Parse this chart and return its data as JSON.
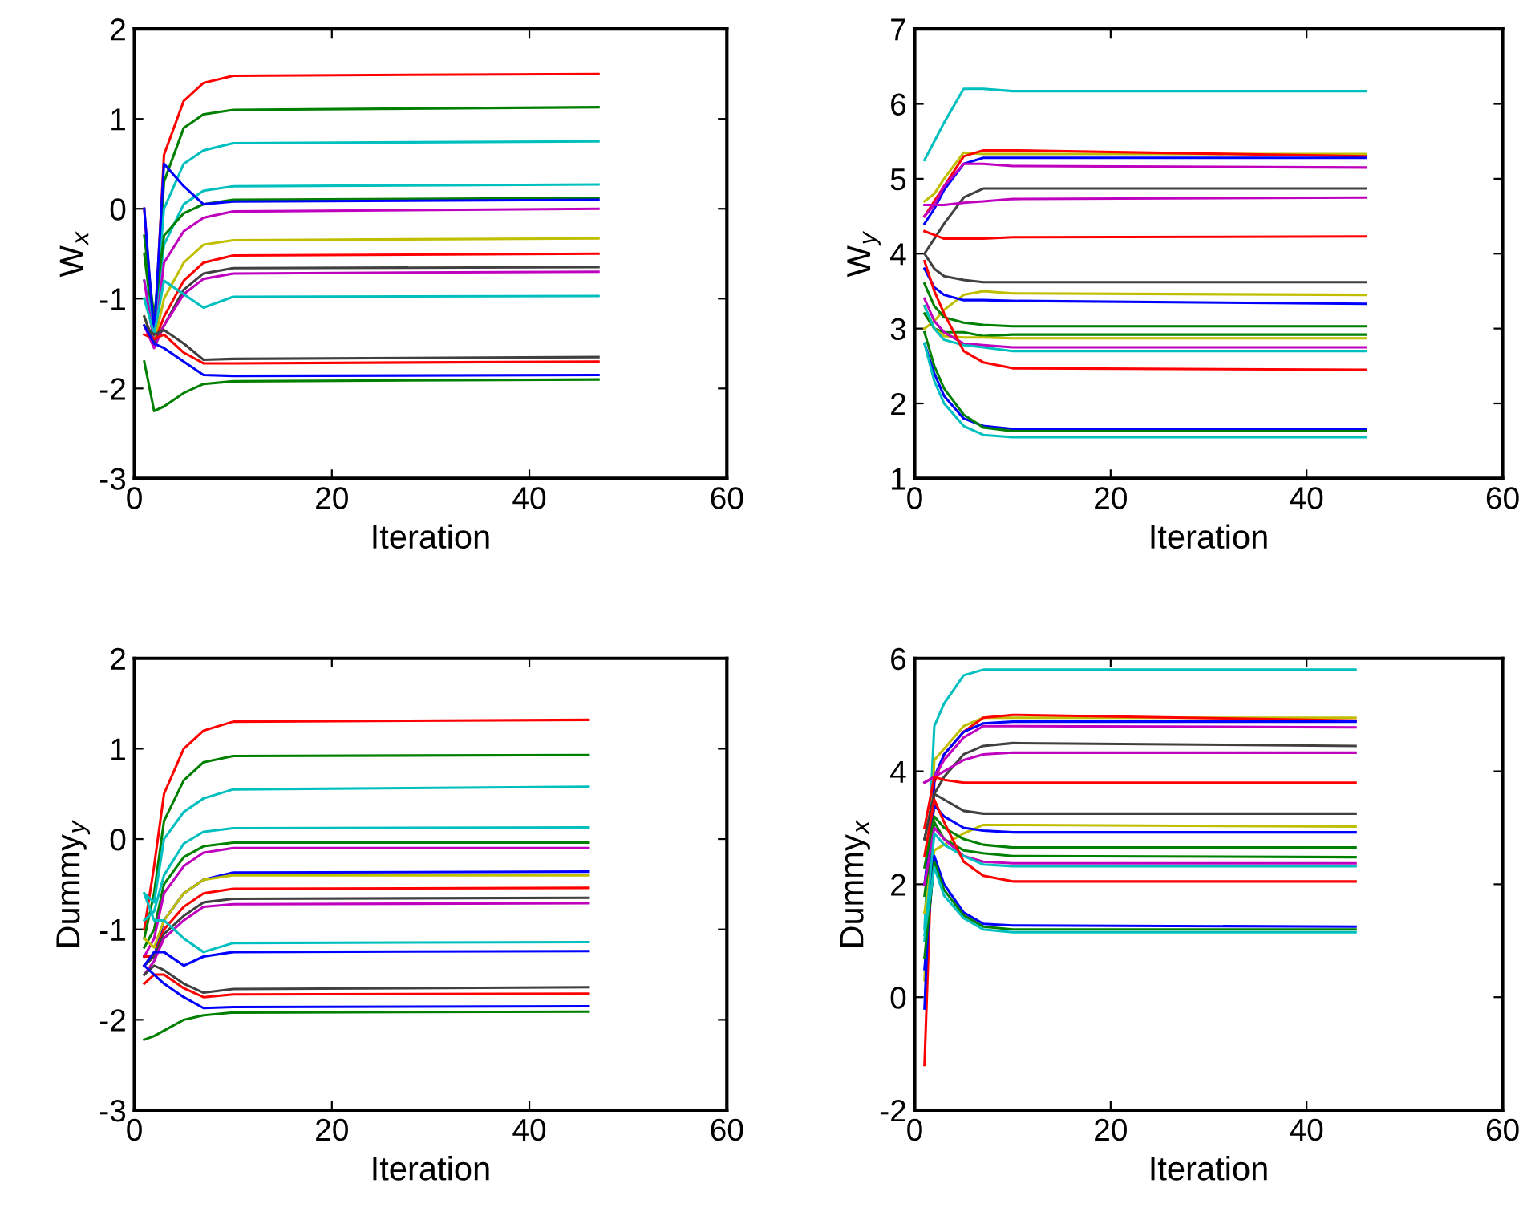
{
  "chart_data": [
    {
      "type": "line",
      "xlabel": "Iteration",
      "ylabel": "W$_{x}$",
      "x": [
        1,
        2,
        3,
        5,
        7,
        10,
        47
      ],
      "xlim": [
        0,
        60
      ],
      "xticks": [
        0,
        20,
        40,
        60
      ],
      "ylim": [
        -3,
        2
      ],
      "yticks": [
        -3,
        -2,
        -1,
        0,
        1,
        2
      ],
      "series": [
        {
          "color": "#ff0000",
          "values": [
            0.0,
            -1.5,
            0.6,
            1.2,
            1.4,
            1.48,
            1.5
          ]
        },
        {
          "color": "#008000",
          "values": [
            -0.5,
            -1.4,
            0.3,
            0.9,
            1.05,
            1.1,
            1.13
          ]
        },
        {
          "color": "#00bfbf",
          "values": [
            -0.8,
            -1.3,
            0.0,
            0.5,
            0.65,
            0.73,
            0.75
          ]
        },
        {
          "color": "#00bfbf",
          "values": [
            -1.0,
            -1.3,
            -0.4,
            0.05,
            0.2,
            0.25,
            0.27
          ]
        },
        {
          "color": "#008000",
          "values": [
            -0.3,
            -1.2,
            -0.3,
            -0.05,
            0.05,
            0.1,
            0.12
          ]
        },
        {
          "color": "#0000ff",
          "values": [
            0.0,
            -1.4,
            0.5,
            0.25,
            0.05,
            0.08,
            0.1
          ]
        },
        {
          "color": "#bf00bf",
          "values": [
            -0.8,
            -1.5,
            -0.6,
            -0.25,
            -0.1,
            -0.03,
            0.0
          ]
        },
        {
          "color": "#bfbf00",
          "values": [
            -1.2,
            -1.5,
            -1.0,
            -0.6,
            -0.4,
            -0.35,
            -0.33
          ]
        },
        {
          "color": "#ff0000",
          "values": [
            -1.3,
            -1.5,
            -1.2,
            -0.8,
            -0.6,
            -0.52,
            -0.5
          ]
        },
        {
          "color": "#404040",
          "values": [
            -1.2,
            -1.5,
            -1.3,
            -0.9,
            -0.72,
            -0.66,
            -0.65
          ]
        },
        {
          "color": "#bf00bf",
          "values": [
            -1.3,
            -1.55,
            -1.3,
            -0.95,
            -0.78,
            -0.72,
            -0.7
          ]
        },
        {
          "color": "#00bfbf",
          "values": [
            -1.0,
            -1.4,
            -0.8,
            -0.95,
            -1.1,
            -0.98,
            -0.97
          ]
        },
        {
          "color": "#404040",
          "values": [
            -1.3,
            -1.4,
            -1.35,
            -1.5,
            -1.68,
            -1.67,
            -1.65
          ]
        },
        {
          "color": "#ff0000",
          "values": [
            -1.4,
            -1.45,
            -1.4,
            -1.6,
            -1.72,
            -1.72,
            -1.7
          ]
        },
        {
          "color": "#0000ff",
          "values": [
            -1.3,
            -1.5,
            -1.55,
            -1.7,
            -1.85,
            -1.86,
            -1.85
          ]
        },
        {
          "color": "#008000",
          "values": [
            -1.7,
            -2.25,
            -2.2,
            -2.05,
            -1.95,
            -1.92,
            -1.9
          ]
        }
      ]
    },
    {
      "type": "line",
      "xlabel": "Iteration",
      "ylabel": "W$_{y}$",
      "x": [
        1,
        2,
        3,
        5,
        7,
        10,
        46
      ],
      "xlim": [
        0,
        60
      ],
      "xticks": [
        0,
        20,
        40,
        60
      ],
      "ylim": [
        1,
        7
      ],
      "yticks": [
        1,
        2,
        3,
        4,
        5,
        6,
        7
      ],
      "series": [
        {
          "color": "#00bfbf",
          "values": [
            5.25,
            5.5,
            5.75,
            6.2,
            6.2,
            6.17,
            6.17
          ]
        },
        {
          "color": "#bfbf00",
          "values": [
            4.7,
            4.8,
            5.0,
            5.35,
            5.33,
            5.33,
            5.33
          ]
        },
        {
          "color": "#ff0000",
          "values": [
            4.5,
            4.7,
            4.9,
            5.3,
            5.38,
            5.38,
            5.3
          ]
        },
        {
          "color": "#0000ff",
          "values": [
            4.4,
            4.6,
            4.85,
            5.2,
            5.28,
            5.28,
            5.28
          ]
        },
        {
          "color": "#bf00bf",
          "values": [
            4.5,
            4.65,
            4.9,
            5.2,
            5.2,
            5.17,
            5.15
          ]
        },
        {
          "color": "#404040",
          "values": [
            4.0,
            4.2,
            4.4,
            4.75,
            4.87,
            4.87,
            4.87
          ]
        },
        {
          "color": "#bf00bf",
          "values": [
            4.65,
            4.65,
            4.65,
            4.68,
            4.7,
            4.73,
            4.75
          ]
        },
        {
          "color": "#ff0000",
          "values": [
            4.3,
            4.25,
            4.2,
            4.2,
            4.2,
            4.22,
            4.23
          ]
        },
        {
          "color": "#404040",
          "values": [
            4.0,
            3.8,
            3.7,
            3.65,
            3.62,
            3.62,
            3.62
          ]
        },
        {
          "color": "#bfbf00",
          "values": [
            3.0,
            3.1,
            3.25,
            3.45,
            3.5,
            3.47,
            3.45
          ]
        },
        {
          "color": "#0000ff",
          "values": [
            3.8,
            3.55,
            3.45,
            3.38,
            3.38,
            3.37,
            3.33
          ]
        },
        {
          "color": "#008000",
          "values": [
            3.6,
            3.3,
            3.15,
            3.08,
            3.05,
            3.03,
            3.03
          ]
        },
        {
          "color": "#008000",
          "values": [
            3.2,
            3.0,
            2.95,
            2.95,
            2.9,
            2.92,
            2.92
          ]
        },
        {
          "color": "#bfbf00",
          "values": [
            3.3,
            3.0,
            2.9,
            2.88,
            2.88,
            2.87,
            2.87
          ]
        },
        {
          "color": "#bf00bf",
          "values": [
            3.4,
            3.1,
            2.95,
            2.8,
            2.78,
            2.75,
            2.75
          ]
        },
        {
          "color": "#00bfbf",
          "values": [
            3.3,
            3.0,
            2.85,
            2.78,
            2.75,
            2.7,
            2.7
          ]
        },
        {
          "color": "#ff0000",
          "values": [
            3.9,
            3.5,
            3.2,
            2.7,
            2.55,
            2.47,
            2.45
          ]
        },
        {
          "color": "#0000ff",
          "values": [
            2.8,
            2.4,
            2.1,
            1.8,
            1.7,
            1.66,
            1.66
          ]
        },
        {
          "color": "#008000",
          "values": [
            2.95,
            2.5,
            2.2,
            1.85,
            1.68,
            1.63,
            1.63
          ]
        },
        {
          "color": "#00bfbf",
          "values": [
            2.8,
            2.3,
            2.0,
            1.7,
            1.58,
            1.55,
            1.55
          ]
        }
      ]
    },
    {
      "type": "line",
      "xlabel": "Iteration",
      "ylabel": "Dummy$_{y}$",
      "x": [
        1,
        2,
        3,
        5,
        7,
        10,
        46
      ],
      "xlim": [
        0,
        60
      ],
      "xticks": [
        0,
        20,
        40,
        60
      ],
      "ylim": [
        -3,
        2
      ],
      "yticks": [
        -3,
        -2,
        -1,
        0,
        1,
        2
      ],
      "series": [
        {
          "color": "#ff0000",
          "values": [
            -1.0,
            -0.3,
            0.5,
            1.0,
            1.2,
            1.3,
            1.32
          ]
        },
        {
          "color": "#008000",
          "values": [
            -1.1,
            -0.6,
            0.2,
            0.65,
            0.85,
            0.92,
            0.93
          ]
        },
        {
          "color": "#00bfbf",
          "values": [
            -0.6,
            -0.7,
            0.0,
            0.3,
            0.45,
            0.55,
            0.58
          ]
        },
        {
          "color": "#00bfbf",
          "values": [
            -0.9,
            -0.8,
            -0.4,
            -0.05,
            0.08,
            0.12,
            0.13
          ]
        },
        {
          "color": "#008000",
          "values": [
            -1.2,
            -1.0,
            -0.5,
            -0.2,
            -0.08,
            -0.04,
            -0.04
          ]
        },
        {
          "color": "#bf00bf",
          "values": [
            -1.3,
            -1.1,
            -0.6,
            -0.3,
            -0.15,
            -0.1,
            -0.1
          ]
        },
        {
          "color": "#0000ff",
          "values": [
            -1.3,
            -1.3,
            -0.9,
            -0.6,
            -0.45,
            -0.37,
            -0.36
          ]
        },
        {
          "color": "#bfbf00",
          "values": [
            -1.1,
            -1.2,
            -0.9,
            -0.6,
            -0.45,
            -0.4,
            -0.4
          ]
        },
        {
          "color": "#ff0000",
          "values": [
            -1.3,
            -1.3,
            -1.0,
            -0.75,
            -0.6,
            -0.55,
            -0.54
          ]
        },
        {
          "color": "#404040",
          "values": [
            -1.4,
            -1.3,
            -1.05,
            -0.85,
            -0.7,
            -0.66,
            -0.65
          ]
        },
        {
          "color": "#bf00bf",
          "values": [
            -1.5,
            -1.35,
            -1.1,
            -0.9,
            -0.75,
            -0.72,
            -0.71
          ]
        },
        {
          "color": "#00bfbf",
          "values": [
            -0.6,
            -0.9,
            -0.9,
            -1.1,
            -1.25,
            -1.15,
            -1.14
          ]
        },
        {
          "color": "#0000ff",
          "values": [
            -1.4,
            -1.25,
            -1.25,
            -1.4,
            -1.3,
            -1.25,
            -1.24
          ]
        },
        {
          "color": "#404040",
          "values": [
            -1.5,
            -1.4,
            -1.45,
            -1.6,
            -1.7,
            -1.66,
            -1.64
          ]
        },
        {
          "color": "#ff0000",
          "values": [
            -1.6,
            -1.5,
            -1.5,
            -1.65,
            -1.75,
            -1.72,
            -1.71
          ]
        },
        {
          "color": "#0000ff",
          "values": [
            -1.4,
            -1.5,
            -1.6,
            -1.75,
            -1.87,
            -1.86,
            -1.85
          ]
        },
        {
          "color": "#008000",
          "values": [
            -2.22,
            -2.18,
            -2.12,
            -2.0,
            -1.95,
            -1.92,
            -1.91
          ]
        }
      ]
    },
    {
      "type": "line",
      "xlabel": "Iteration",
      "ylabel": "Dummy$_{x}$",
      "x": [
        1,
        2,
        3,
        5,
        7,
        10,
        45
      ],
      "xlim": [
        0,
        60
      ],
      "xticks": [
        0,
        20,
        40,
        60
      ],
      "ylim": [
        -2,
        6
      ],
      "yticks": [
        -2,
        0,
        2,
        4,
        6
      ],
      "series": [
        {
          "color": "#00bfbf",
          "values": [
            1.2,
            4.8,
            5.2,
            5.7,
            5.8,
            5.8,
            5.8
          ]
        },
        {
          "color": "#bfbf00",
          "values": [
            0.3,
            4.2,
            4.4,
            4.8,
            4.95,
            4.95,
            4.95
          ]
        },
        {
          "color": "#ff0000",
          "values": [
            -1.2,
            3.8,
            4.3,
            4.7,
            4.95,
            5.0,
            4.9
          ]
        },
        {
          "color": "#0000ff",
          "values": [
            -0.2,
            3.9,
            4.3,
            4.7,
            4.85,
            4.88,
            4.88
          ]
        },
        {
          "color": "#bf00bf",
          "values": [
            3.8,
            3.9,
            4.2,
            4.6,
            4.8,
            4.8,
            4.78
          ]
        },
        {
          "color": "#404040",
          "values": [
            2.8,
            3.6,
            3.9,
            4.3,
            4.45,
            4.5,
            4.45
          ]
        },
        {
          "color": "#bf00bf",
          "values": [
            3.8,
            3.9,
            4.0,
            4.2,
            4.3,
            4.33,
            4.33
          ]
        },
        {
          "color": "#ff0000",
          "values": [
            3.0,
            3.9,
            3.85,
            3.8,
            3.8,
            3.8,
            3.8
          ]
        },
        {
          "color": "#404040",
          "values": [
            2.8,
            3.6,
            3.5,
            3.3,
            3.25,
            3.25,
            3.25
          ]
        },
        {
          "color": "#bfbf00",
          "values": [
            1.5,
            2.6,
            2.7,
            2.9,
            3.05,
            3.05,
            3.02
          ]
        },
        {
          "color": "#0000ff",
          "values": [
            2.0,
            3.4,
            3.2,
            3.0,
            2.95,
            2.92,
            2.92
          ]
        },
        {
          "color": "#008000",
          "values": [
            2.3,
            3.2,
            3.0,
            2.8,
            2.7,
            2.65,
            2.65
          ]
        },
        {
          "color": "#008000",
          "values": [
            1.8,
            3.1,
            2.8,
            2.6,
            2.55,
            2.5,
            2.48
          ]
        },
        {
          "color": "#bf00bf",
          "values": [
            2.0,
            3.0,
            2.8,
            2.5,
            2.4,
            2.37,
            2.37
          ]
        },
        {
          "color": "#00bfbf",
          "values": [
            1.0,
            2.9,
            2.7,
            2.5,
            2.35,
            2.32,
            2.32
          ]
        },
        {
          "color": "#ff0000",
          "values": [
            2.5,
            3.5,
            3.1,
            2.4,
            2.15,
            2.05,
            2.05
          ]
        },
        {
          "color": "#0000ff",
          "values": [
            0.5,
            2.5,
            2.0,
            1.5,
            1.3,
            1.27,
            1.25
          ]
        },
        {
          "color": "#008000",
          "values": [
            0.7,
            2.4,
            1.9,
            1.45,
            1.25,
            1.2,
            1.2
          ]
        },
        {
          "color": "#00bfbf",
          "values": [
            1.1,
            2.3,
            1.8,
            1.4,
            1.2,
            1.15,
            1.15
          ]
        }
      ]
    }
  ]
}
